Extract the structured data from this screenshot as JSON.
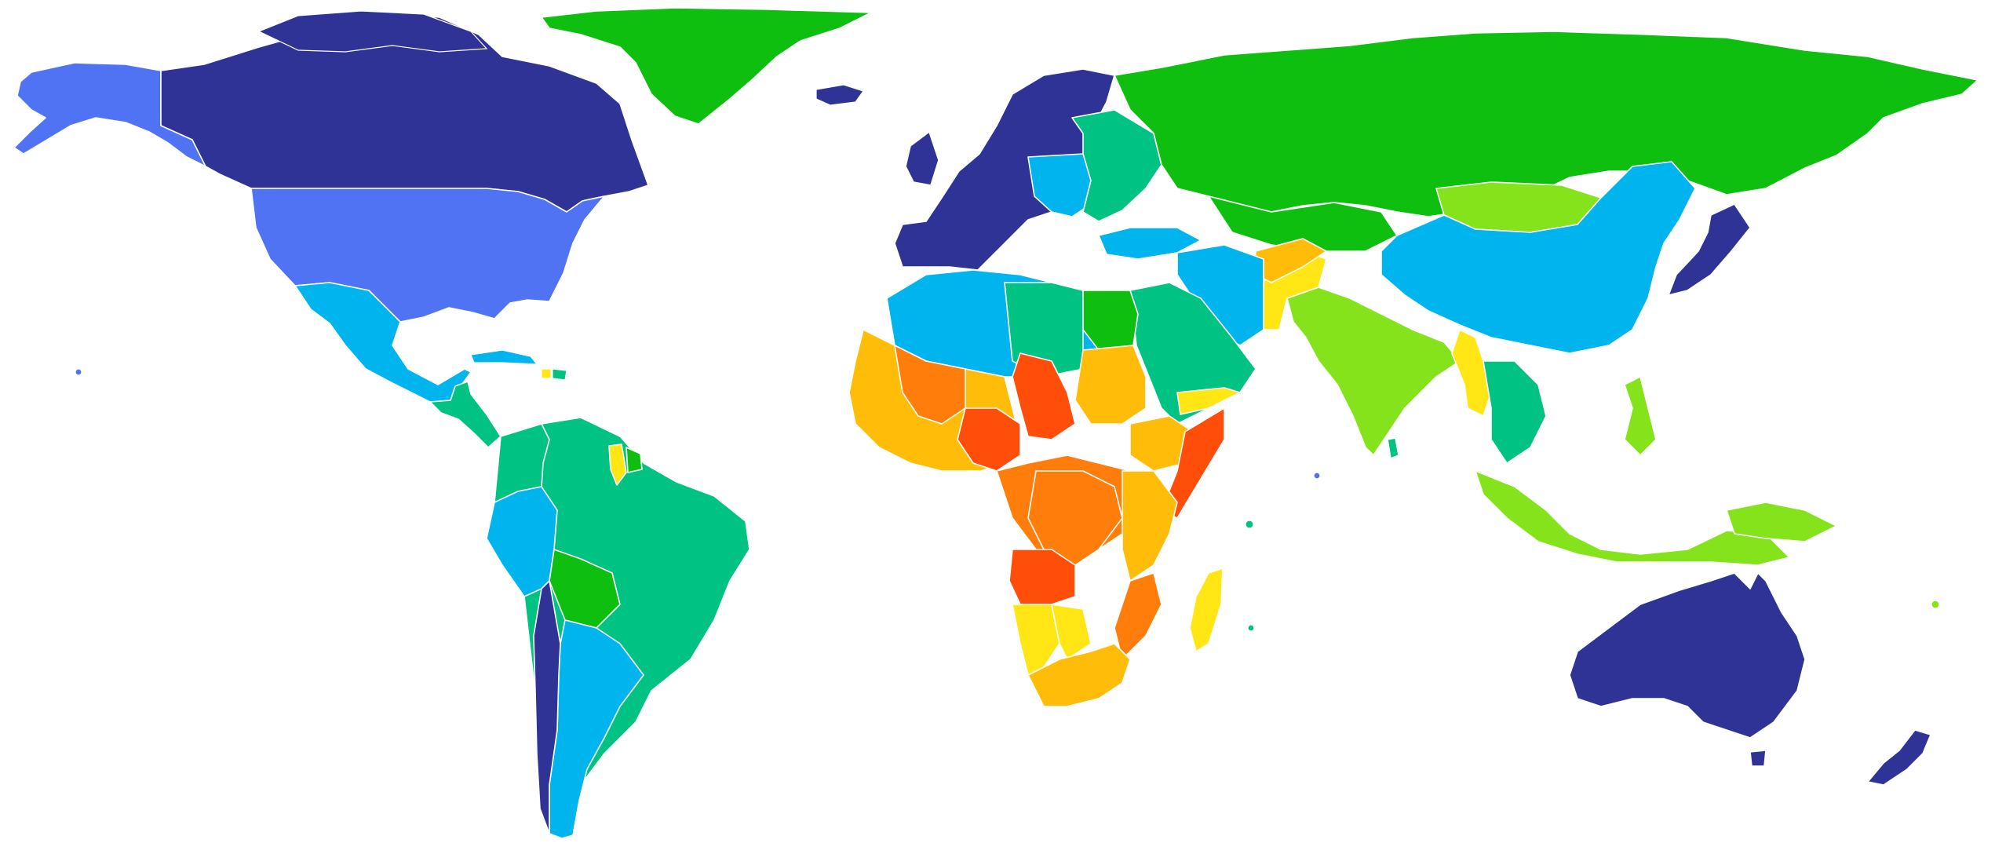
{
  "map": {
    "type": "choropleth world map",
    "legend": [],
    "colors": {
      "navy": "#2f3396",
      "blue": "#4f73f2",
      "sky": "#00b4ee",
      "teal": "#00c282",
      "green": "#0fbf0f",
      "lime": "#85e31c",
      "yellow": "#ffe614",
      "amber": "#ffbd0a",
      "orange": "#ff7d0a",
      "red": "#ff4e0a"
    },
    "regions": [
      {
        "name": "alaska",
        "tier": "blue"
      },
      {
        "name": "canada",
        "tier": "navy"
      },
      {
        "name": "greenland",
        "tier": "green"
      },
      {
        "name": "usa",
        "tier": "blue"
      },
      {
        "name": "mexico",
        "tier": "sky"
      },
      {
        "name": "central-america",
        "tier": "teal"
      },
      {
        "name": "south-america",
        "tier": "teal"
      },
      {
        "name": "western-europe",
        "tier": "navy"
      },
      {
        "name": "eastern-europe",
        "tier": "teal"
      },
      {
        "name": "russia",
        "tier": "green"
      },
      {
        "name": "china",
        "tier": "sky"
      },
      {
        "name": "india",
        "tier": "lime"
      },
      {
        "name": "middle-east",
        "tier": "teal"
      },
      {
        "name": "north-africa",
        "tier": "sky"
      },
      {
        "name": "central-africa",
        "tier": "orange"
      },
      {
        "name": "southern-africa",
        "tier": "amber"
      },
      {
        "name": "southeast-asia",
        "tier": "lime"
      },
      {
        "name": "japan",
        "tier": "navy"
      },
      {
        "name": "australia",
        "tier": "navy"
      },
      {
        "name": "new-zealand",
        "tier": "navy"
      }
    ]
  }
}
